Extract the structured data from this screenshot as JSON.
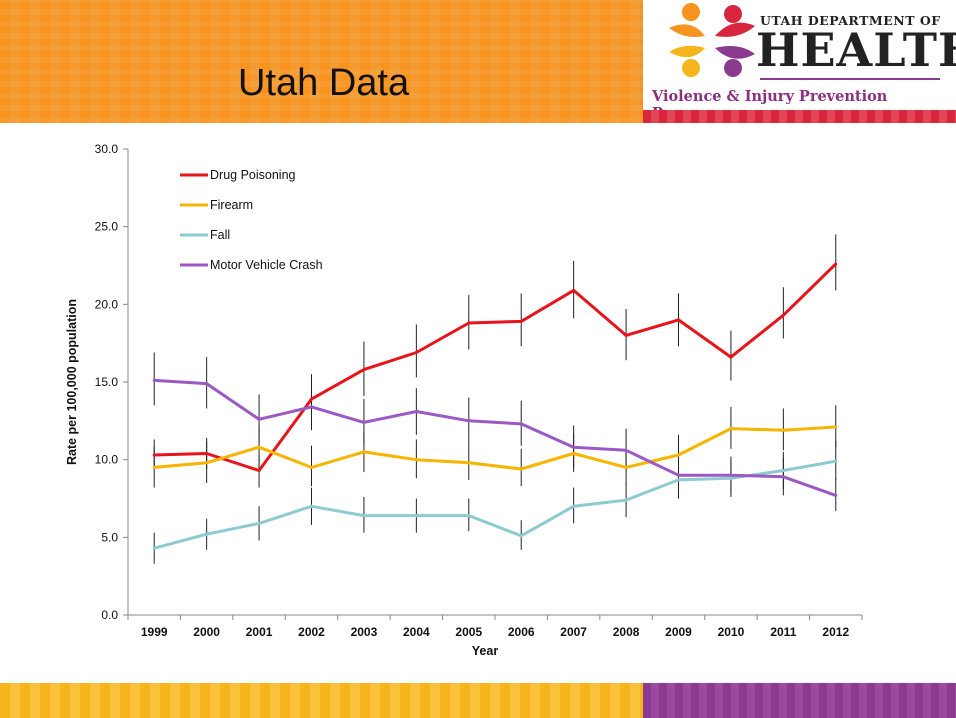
{
  "slide": {
    "title": "Utah Data",
    "colors": {
      "orange": "#f7931e",
      "yellow": "#f6b51c",
      "purple": "#8b3b8f",
      "red": "#d8263e"
    }
  },
  "logo": {
    "line1": "UTAH DEPARTMENT OF",
    "line2": "HEALTH",
    "line3": "Violence & Injury Prevention Program"
  },
  "chart_data": {
    "type": "line",
    "x": [
      "1999",
      "2000",
      "2001",
      "2002",
      "2003",
      "2004",
      "2005",
      "2006",
      "2007",
      "2008",
      "2009",
      "2010",
      "2011",
      "2012"
    ],
    "xlabel": "Year",
    "ylabel": "Rate per 100,000 population",
    "ylim": [
      0,
      30
    ],
    "yticks": [
      "0.0",
      "5.0",
      "10.0",
      "15.0",
      "20.0",
      "25.0",
      "30.0"
    ],
    "grid": false,
    "legend_position": "top-left",
    "error_bars": true,
    "series": [
      {
        "name": "Drug Poisoning",
        "color": "#e8141b",
        "values": [
          10.3,
          10.4,
          9.3,
          13.9,
          15.8,
          16.9,
          18.8,
          18.9,
          20.9,
          18.0,
          19.0,
          16.6,
          19.3,
          22.6
        ],
        "ci": [
          [
            9.4,
            11.3
          ],
          [
            9.4,
            11.4
          ],
          [
            8.2,
            10.3
          ],
          [
            12.4,
            15.5
          ],
          [
            14.1,
            17.6
          ],
          [
            15.3,
            18.7
          ],
          [
            17.1,
            20.6
          ],
          [
            17.3,
            20.7
          ],
          [
            19.1,
            22.8
          ],
          [
            16.4,
            19.7
          ],
          [
            17.3,
            20.7
          ],
          [
            15.1,
            18.3
          ],
          [
            17.8,
            21.1
          ],
          [
            20.9,
            24.5
          ]
        ]
      },
      {
        "name": "Firearm",
        "color": "#f7b500",
        "values": [
          9.5,
          9.8,
          10.8,
          9.5,
          10.5,
          10.0,
          9.8,
          9.4,
          10.4,
          9.5,
          10.3,
          12.0,
          11.9,
          12.1
        ],
        "ci": [
          [
            8.2,
            10.8
          ],
          [
            8.5,
            11.2
          ],
          [
            9.4,
            12.2
          ],
          [
            8.3,
            10.9
          ],
          [
            9.2,
            11.8
          ],
          [
            8.8,
            11.3
          ],
          [
            8.7,
            11.1
          ],
          [
            8.3,
            10.7
          ],
          [
            9.2,
            11.7
          ],
          [
            8.4,
            10.7
          ],
          [
            9.1,
            11.6
          ],
          [
            10.7,
            13.4
          ],
          [
            10.6,
            13.3
          ],
          [
            10.8,
            13.5
          ]
        ]
      },
      {
        "name": "Fall",
        "color": "#8ecbd0",
        "values": [
          4.3,
          5.2,
          5.9,
          7.0,
          6.4,
          6.4,
          6.4,
          5.1,
          7.0,
          7.4,
          8.7,
          8.8,
          9.3,
          9.9
        ],
        "ci": [
          [
            3.3,
            5.3
          ],
          [
            4.2,
            6.2
          ],
          [
            4.8,
            7.0
          ],
          [
            5.8,
            8.2
          ],
          [
            5.3,
            7.6
          ],
          [
            5.3,
            7.5
          ],
          [
            5.4,
            7.5
          ],
          [
            4.2,
            6.1
          ],
          [
            5.9,
            8.2
          ],
          [
            6.3,
            8.6
          ],
          [
            7.5,
            9.9
          ],
          [
            7.6,
            10.0
          ],
          [
            8.1,
            10.5
          ],
          [
            8.7,
            11.2
          ]
        ]
      },
      {
        "name": "Motor Vehicle Crash",
        "color": "#9a59c4",
        "values": [
          15.1,
          14.9,
          12.6,
          13.4,
          12.4,
          13.1,
          12.5,
          12.3,
          10.8,
          10.6,
          9.0,
          9.0,
          8.9,
          7.7
        ],
        "ci": [
          [
            13.5,
            16.9
          ],
          [
            13.3,
            16.6
          ],
          [
            11.1,
            14.2
          ],
          [
            11.9,
            15.0
          ],
          [
            11.0,
            13.9
          ],
          [
            11.6,
            14.6
          ],
          [
            11.1,
            14.0
          ],
          [
            10.9,
            13.8
          ],
          [
            9.5,
            12.2
          ],
          [
            9.3,
            12.0
          ],
          [
            7.8,
            10.3
          ],
          [
            7.8,
            10.2
          ],
          [
            7.7,
            10.1
          ],
          [
            6.7,
            8.8
          ]
        ]
      }
    ]
  }
}
